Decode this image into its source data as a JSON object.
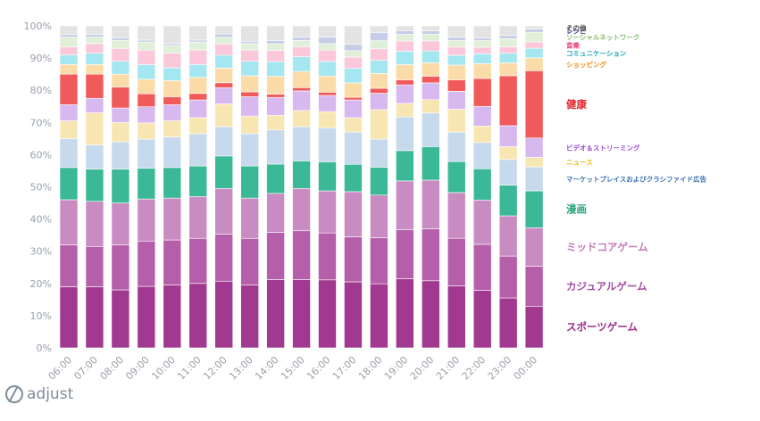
{
  "chart_data": {
    "type": "bar",
    "stacked": true,
    "normalized": true,
    "categories": [
      "06:00",
      "07:00",
      "08:00",
      "09:00",
      "10:00",
      "11:00",
      "12:00",
      "13:00",
      "14:00",
      "15:00",
      "16:00",
      "17:00",
      "18:00",
      "19:00",
      "20:00",
      "21:00",
      "22:00",
      "23:00",
      "00:00"
    ],
    "ylim": [
      0,
      100
    ],
    "yticks": [
      "0%",
      "10%",
      "20%",
      "30%",
      "40%",
      "50%",
      "60%",
      "70%",
      "80%",
      "90%",
      "100%"
    ],
    "grid": false,
    "legend_position": "right",
    "series": [
      {
        "name": "スポーツゲーム",
        "color": "#a0398f",
        "size": "big",
        "values": [
          19,
          19,
          18,
          19,
          19.5,
          20,
          20.5,
          19.5,
          21,
          21,
          21,
          20.5,
          19.5,
          20.5,
          20,
          19,
          17.5,
          15.5,
          13
        ]
      },
      {
        "name": "カジュアルゲーム",
        "color": "#b55fab",
        "size": "big",
        "values": [
          13,
          12.5,
          14,
          14,
          14,
          14,
          14.5,
          14.5,
          14.5,
          15,
          14.5,
          14,
          14,
          14.5,
          15.5,
          14.5,
          14,
          13,
          12.5
        ]
      },
      {
        "name": "ミッドコアゲーム",
        "color": "#c98cc2",
        "size": "big",
        "values": [
          14,
          14,
          13,
          13,
          13,
          13,
          14,
          12.5,
          12,
          13,
          13,
          14,
          13,
          14.5,
          14.5,
          14,
          13.5,
          12.5,
          12
        ]
      },
      {
        "name": "漫画",
        "color": "#3bb896",
        "size": "big",
        "values": [
          10,
          10,
          10.5,
          9.5,
          9.5,
          9.5,
          10,
          10,
          9,
          8.5,
          9,
          8.5,
          8.5,
          9,
          10,
          9.5,
          9.5,
          9.5,
          11.5
        ]
      },
      {
        "name": "マーケットプレイスおよびクラシファイド広告",
        "color": "#c7d9ec",
        "size": "small",
        "values": [
          9,
          7.5,
          8.5,
          9,
          9.5,
          10,
          9,
          10,
          10.5,
          10.5,
          10.5,
          10,
          8.5,
          10,
          10,
          9,
          8,
          8,
          7.5
        ]
      },
      {
        "name": "ニュース",
        "color": "#f8e6b2",
        "size": "small",
        "values": [
          5.5,
          10,
          6,
          5,
          5,
          5,
          7,
          5.5,
          4.5,
          5,
          5,
          4.5,
          9,
          4,
          4,
          7,
          5,
          4,
          3
        ]
      },
      {
        "name": "ビデオ＆ストリーミング",
        "color": "#d7b9f0",
        "size": "small",
        "values": [
          5,
          4.5,
          4.5,
          5,
          5,
          5.5,
          5,
          6,
          5.5,
          6,
          5,
          5.5,
          5,
          5.5,
          5,
          5.5,
          6,
          6.5,
          6
        ]
      },
      {
        "name": "健康",
        "color": "#f15a5a",
        "size": "big",
        "values": [
          9.5,
          7.5,
          6.5,
          4,
          2.5,
          2,
          1.5,
          1.5,
          1,
          1,
          1,
          0.8,
          1.5,
          1.5,
          2,
          3.5,
          8.5,
          15.5,
          21
        ]
      },
      {
        "name": "ショッピング",
        "color": "#fbdca8",
        "size": "small",
        "values": [
          3,
          3,
          4,
          4.5,
          5,
          5,
          4.5,
          5,
          5.5,
          5,
          5,
          4.5,
          4.5,
          4.5,
          4,
          4.5,
          4.5,
          4,
          4
        ]
      },
      {
        "name": "コミュニケーション",
        "color": "#a5e7f0",
        "size": "small",
        "values": [
          3,
          3.5,
          4,
          4.5,
          4,
          4,
          4,
          4.5,
          4.5,
          4.5,
          4.5,
          4.5,
          4,
          4,
          3.5,
          3,
          3,
          3,
          3
        ]
      },
      {
        "name": "音楽",
        "color": "#fbc7da",
        "size": "small",
        "values": [
          2.5,
          3,
          4,
          4.5,
          4.5,
          4.5,
          3.5,
          3.5,
          3.5,
          3,
          3.5,
          3.5,
          3.5,
          3,
          3,
          2.5,
          2,
          2,
          2
        ]
      },
      {
        "name": "ソーシャルネットワーク",
        "color": "#e0f0d8",
        "size": "small",
        "values": [
          3,
          2,
          2.5,
          2.5,
          2.5,
          2.5,
          2,
          2,
          2,
          2,
          2,
          2,
          2.5,
          2,
          2,
          2,
          2,
          2.5,
          3
        ]
      },
      {
        "name": "レシピ",
        "color": "#c7cde6",
        "size": "small",
        "values": [
          0.8,
          0.8,
          0.8,
          0.6,
          0.6,
          0.6,
          1,
          0.7,
          1,
          1,
          2,
          2,
          2.5,
          1,
          1,
          1,
          0.8,
          1,
          1
        ]
      },
      {
        "name": "その他",
        "color": "#e3e3e3",
        "size": "small",
        "values": [
          2.7,
          2.7,
          3.7,
          4.4,
          5.4,
          4.4,
          2.5,
          4.8,
          4.5,
          3.5,
          3.5,
          5.7,
          2,
          1.5,
          1.5,
          3.5,
          3.7,
          3,
          1
        ]
      }
    ]
  },
  "legend_colors": {
    "その他": "#4a4a4a",
    "レシピ": "#3b3f8f",
    "ソーシャルネットワーク": "#86c069",
    "音楽": "#e8306f",
    "コミュニケーション": "#1aa6bd",
    "ショッピング": "#f08c1e",
    "健康": "#e2272f",
    "ビデオ＆ストリーミング": "#9b4bd8",
    "ニュース": "#e6b400",
    "マーケットプレイスおよびクラシファイド広告": "#3d74b4",
    "漫画": "#2fa57f",
    "ミッドコアゲーム": "#c27ab8",
    "カジュアルゲーム": "#a44ba0",
    "スポーツゲーム": "#9a2e88"
  },
  "logo": {
    "text": "adjust",
    "icon": "adjust-logo-icon"
  }
}
